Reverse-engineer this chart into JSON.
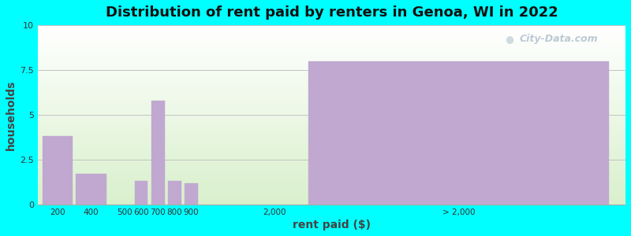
{
  "title": "Distribution of rent paid by renters in Genoa, WI in 2022",
  "xlabel": "rent paid ($)",
  "ylabel": "households",
  "background_outer": "#00FFFF",
  "bar_color": "#c0a8d0",
  "bar_edgecolor": "#c0a8d0",
  "ylim": [
    0,
    10
  ],
  "yticks": [
    0,
    2.5,
    5,
    7.5,
    10
  ],
  "watermark": "City-Data.com",
  "title_fontsize": 13,
  "axis_label_fontsize": 10,
  "bar_positions": [
    0.5,
    1.5,
    2.5,
    3.0,
    3.5,
    4.0,
    4.5,
    7.0,
    12.5
  ],
  "bar_widths": [
    0.9,
    0.9,
    0.4,
    0.4,
    0.4,
    0.4,
    0.4,
    1.0,
    9.0
  ],
  "values": [
    3.8,
    1.7,
    0.0,
    1.3,
    5.8,
    1.3,
    1.2,
    0.0,
    8.0
  ],
  "xlim": [
    -0.1,
    17.5
  ],
  "xtick_positions": [
    0.5,
    1.5,
    2.5,
    3.0,
    3.5,
    4.0,
    4.5,
    7.0,
    12.5
  ],
  "xtick_labels": [
    "200",
    "400",
    "500",
    "600",
    "700",
    "800",
    "900",
    "2,000",
    "> 2,000"
  ]
}
